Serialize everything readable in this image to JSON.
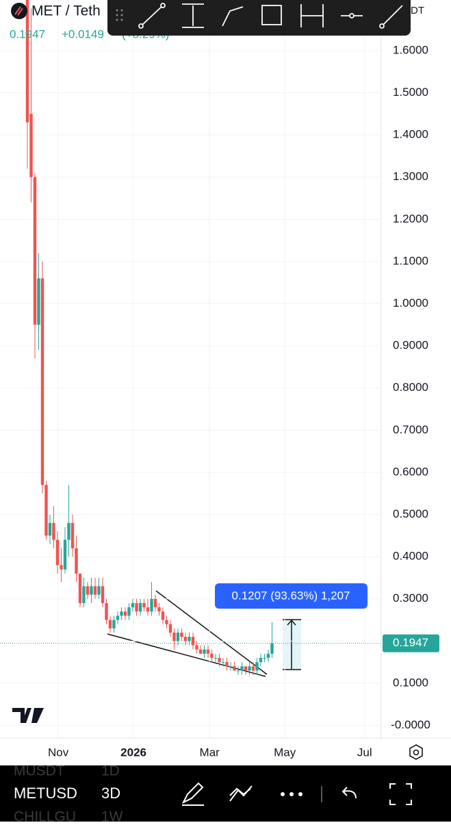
{
  "header": {
    "symbol": "MET / Teth",
    "price": "0.1947",
    "change": "+0.0149",
    "change_pct": "(+8.29%)",
    "quote": "DT"
  },
  "chart_data": {
    "type": "candlestick",
    "open": [
      1.72,
      1.45,
      1.3,
      0.95,
      1.06,
      0.57,
      0.45,
      0.48,
      0.44,
      0.38,
      0.37,
      0.44,
      0.48,
      0.42,
      0.36,
      0.29,
      0.33,
      0.31,
      0.33,
      0.31,
      0.33,
      0.29,
      0.25,
      0.23,
      0.25,
      0.26,
      0.27,
      0.26,
      0.28,
      0.29,
      0.27,
      0.29,
      0.28,
      0.27,
      0.3,
      0.28,
      0.27,
      0.25,
      0.24,
      0.22,
      0.2,
      0.22,
      0.21,
      0.2,
      0.21,
      0.19,
      0.18,
      0.17,
      0.18,
      0.17,
      0.16,
      0.16,
      0.15,
      0.15,
      0.14,
      0.14,
      0.13,
      0.13,
      0.14,
      0.13,
      0.14,
      0.13,
      0.15,
      0.16,
      0.16,
      0.17
    ],
    "high": [
      1.72,
      1.7,
      1.31,
      1.12,
      1.1,
      0.58,
      0.5,
      0.52,
      0.46,
      0.42,
      0.47,
      0.57,
      0.5,
      0.45,
      0.36,
      0.35,
      0.34,
      0.35,
      0.35,
      0.35,
      0.35,
      0.3,
      0.26,
      0.26,
      0.27,
      0.28,
      0.28,
      0.29,
      0.3,
      0.3,
      0.3,
      0.3,
      0.3,
      0.34,
      0.31,
      0.29,
      0.28,
      0.26,
      0.25,
      0.23,
      0.23,
      0.23,
      0.22,
      0.22,
      0.22,
      0.2,
      0.19,
      0.19,
      0.19,
      0.18,
      0.17,
      0.17,
      0.16,
      0.16,
      0.15,
      0.15,
      0.14,
      0.15,
      0.14,
      0.15,
      0.15,
      0.16,
      0.17,
      0.17,
      0.18,
      0.245
    ],
    "low": [
      1.32,
      1.24,
      0.87,
      0.89,
      0.55,
      0.44,
      0.43,
      0.42,
      0.36,
      0.34,
      0.36,
      0.4,
      0.4,
      0.34,
      0.28,
      0.28,
      0.3,
      0.29,
      0.3,
      0.3,
      0.28,
      0.24,
      0.22,
      0.22,
      0.24,
      0.25,
      0.25,
      0.25,
      0.27,
      0.26,
      0.26,
      0.27,
      0.26,
      0.26,
      0.27,
      0.26,
      0.24,
      0.23,
      0.21,
      0.18,
      0.19,
      0.2,
      0.19,
      0.19,
      0.18,
      0.17,
      0.17,
      0.16,
      0.16,
      0.15,
      0.15,
      0.14,
      0.14,
      0.13,
      0.13,
      0.13,
      0.12,
      0.12,
      0.12,
      0.12,
      0.12,
      0.12,
      0.14,
      0.15,
      0.15,
      0.16
    ],
    "close": [
      1.43,
      1.3,
      0.95,
      1.06,
      0.57,
      0.45,
      0.48,
      0.44,
      0.38,
      0.37,
      0.44,
      0.48,
      0.42,
      0.36,
      0.29,
      0.33,
      0.31,
      0.33,
      0.31,
      0.33,
      0.29,
      0.25,
      0.23,
      0.25,
      0.26,
      0.27,
      0.26,
      0.28,
      0.29,
      0.27,
      0.29,
      0.28,
      0.27,
      0.3,
      0.28,
      0.27,
      0.25,
      0.24,
      0.22,
      0.2,
      0.22,
      0.21,
      0.2,
      0.21,
      0.19,
      0.18,
      0.17,
      0.18,
      0.17,
      0.16,
      0.16,
      0.15,
      0.15,
      0.14,
      0.14,
      0.13,
      0.13,
      0.14,
      0.13,
      0.14,
      0.13,
      0.15,
      0.16,
      0.16,
      0.17,
      0.1947
    ],
    "up_color": "#26a69a",
    "down_color": "#ef5350",
    "xlim": [
      -7.27,
      94
    ],
    "xticks": [
      {
        "value": 8.2,
        "label": "Nov"
      },
      {
        "value": 28.2,
        "label": "2026"
      },
      {
        "value": 48.4,
        "label": "Mar"
      },
      {
        "value": 68.4,
        "label": "May"
      },
      {
        "value": 89.6,
        "label": "Jul"
      }
    ],
    "ylim": [
      -0.03,
      1.72
    ],
    "yticks": [
      {
        "value": 0,
        "label": "-0.0000"
      },
      {
        "value": 0.1,
        "label": "0.1000"
      },
      {
        "value": 0.2,
        "label": "0.2000"
      },
      {
        "value": 0.3,
        "label": "0.3000"
      },
      {
        "value": 0.4,
        "label": "0.4000"
      },
      {
        "value": 0.5,
        "label": "0.5000"
      },
      {
        "value": 0.6,
        "label": "0.6000"
      },
      {
        "value": 0.7,
        "label": "0.7000"
      },
      {
        "value": 0.8,
        "label": "0.8000"
      },
      {
        "value": 0.9,
        "label": "0.9000"
      },
      {
        "value": 1.0,
        "label": "1.0000"
      },
      {
        "value": 1.1,
        "label": "1.1000"
      },
      {
        "value": 1.2,
        "label": "1.2000"
      },
      {
        "value": 1.3,
        "label": "1.3000"
      },
      {
        "value": 1.4,
        "label": "1.4000"
      },
      {
        "value": 1.5,
        "label": "1.5000"
      },
      {
        "value": 1.6,
        "label": "1.6000"
      }
    ],
    "grid": true,
    "last_price": 0.1947,
    "measure_label": "0.1207 (93.63%) 1,207"
  },
  "bottom_bar": {
    "symbols": [
      {
        "name": "MUSDT",
        "interval": "1D"
      },
      {
        "name": "METUSD",
        "interval": "3D"
      },
      {
        "name": "CHILLGU",
        "interval": "1W"
      }
    ]
  }
}
